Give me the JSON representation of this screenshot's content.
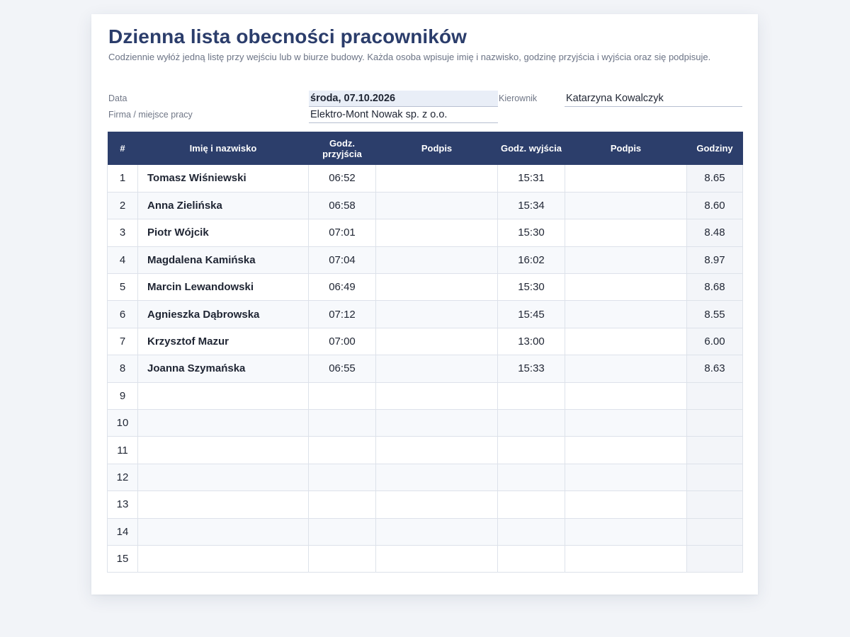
{
  "title": "Dzienna lista obecności pracowników",
  "subtitle": "Codziennie wyłóż jedną listę przy wejściu lub w biurze budowy. Każda osoba wpisuje imię i nazwisko, godzinę przyjścia i wyjścia oraz się podpisuje.",
  "meta": {
    "date_label": "Data",
    "date_value": "środa, 07.10.2026",
    "manager_label": "Kierownik",
    "manager_value": "Katarzyna Kowalczyk",
    "company_label": "Firma / miejsce pracy",
    "company_value": "Elektro-Mont Nowak sp. z o.o."
  },
  "table": {
    "headers": [
      "#",
      "Imię i nazwisko",
      "Godz. przyjścia",
      "Podpis",
      "Godz. wyjścia",
      "Podpis",
      "Godziny"
    ],
    "rows": [
      {
        "num": "1",
        "name": "Tomasz Wiśniewski",
        "arrival": "06:52",
        "sig_in": "",
        "departure": "15:31",
        "sig_out": "",
        "hours": "8.65"
      },
      {
        "num": "2",
        "name": "Anna Zielińska",
        "arrival": "06:58",
        "sig_in": "",
        "departure": "15:34",
        "sig_out": "",
        "hours": "8.60"
      },
      {
        "num": "3",
        "name": "Piotr Wójcik",
        "arrival": "07:01",
        "sig_in": "",
        "departure": "15:30",
        "sig_out": "",
        "hours": "8.48"
      },
      {
        "num": "4",
        "name": "Magdalena Kamińska",
        "arrival": "07:04",
        "sig_in": "",
        "departure": "16:02",
        "sig_out": "",
        "hours": "8.97"
      },
      {
        "num": "5",
        "name": "Marcin Lewandowski",
        "arrival": "06:49",
        "sig_in": "",
        "departure": "15:30",
        "sig_out": "",
        "hours": "8.68"
      },
      {
        "num": "6",
        "name": "Agnieszka Dąbrowska",
        "arrival": "07:12",
        "sig_in": "",
        "departure": "15:45",
        "sig_out": "",
        "hours": "8.55"
      },
      {
        "num": "7",
        "name": "Krzysztof Mazur",
        "arrival": "07:00",
        "sig_in": "",
        "departure": "13:00",
        "sig_out": "",
        "hours": "6.00"
      },
      {
        "num": "8",
        "name": "Joanna Szymańska",
        "arrival": "06:55",
        "sig_in": "",
        "departure": "15:33",
        "sig_out": "",
        "hours": "8.63"
      },
      {
        "num": "9",
        "name": "",
        "arrival": "",
        "sig_in": "",
        "departure": "",
        "sig_out": "",
        "hours": ""
      },
      {
        "num": "10",
        "name": "",
        "arrival": "",
        "sig_in": "",
        "departure": "",
        "sig_out": "",
        "hours": ""
      },
      {
        "num": "11",
        "name": "",
        "arrival": "",
        "sig_in": "",
        "departure": "",
        "sig_out": "",
        "hours": ""
      },
      {
        "num": "12",
        "name": "",
        "arrival": "",
        "sig_in": "",
        "departure": "",
        "sig_out": "",
        "hours": ""
      },
      {
        "num": "13",
        "name": "",
        "arrival": "",
        "sig_in": "",
        "departure": "",
        "sig_out": "",
        "hours": ""
      },
      {
        "num": "14",
        "name": "",
        "arrival": "",
        "sig_in": "",
        "departure": "",
        "sig_out": "",
        "hours": ""
      },
      {
        "num": "15",
        "name": "",
        "arrival": "",
        "sig_in": "",
        "departure": "",
        "sig_out": "",
        "hours": ""
      }
    ]
  },
  "colors": {
    "header_bg": "#2c3e6b",
    "title": "#2b3d6b",
    "date_highlight": "#e9eef7"
  }
}
